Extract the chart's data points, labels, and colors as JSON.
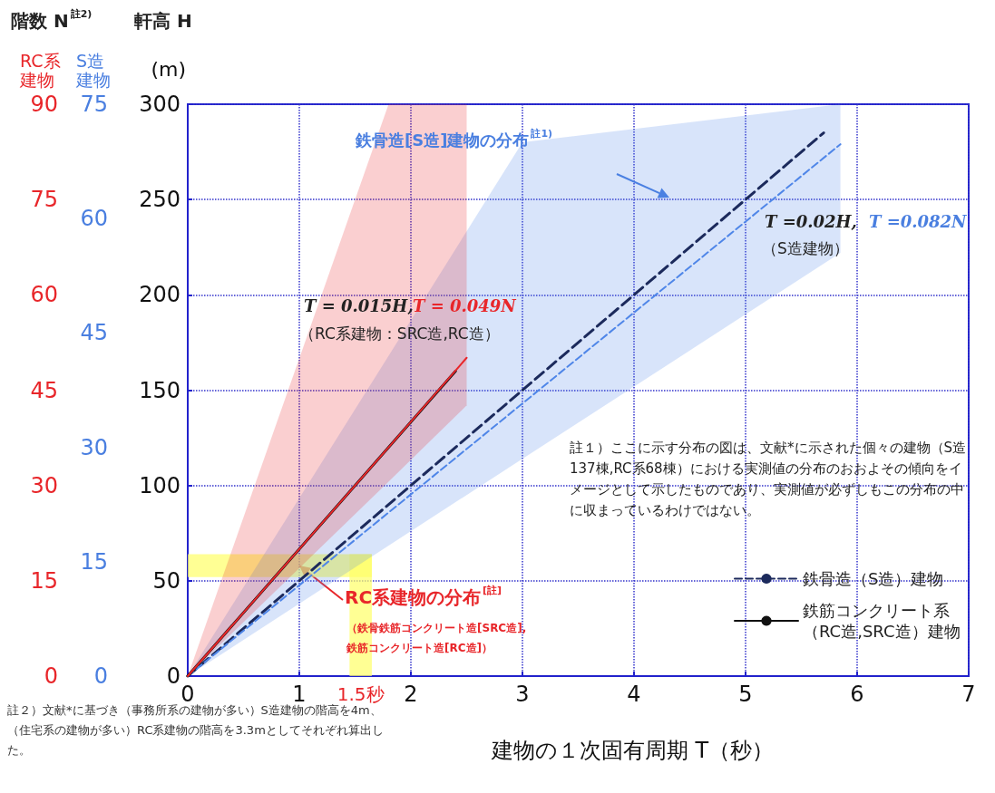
{
  "chart_data": {
    "type": "line",
    "xlabel": "建物の１次固有周期 T（秒）",
    "ylabel": "(m)",
    "y2label": "RC系建物",
    "y3label": "S造建物",
    "xlim": [
      0,
      7
    ],
    "xticks": [
      0,
      1,
      2,
      3,
      4,
      5,
      6,
      7
    ],
    "ylim": [
      0,
      300
    ],
    "yticks": [
      0,
      50,
      100,
      150,
      200,
      250,
      300
    ],
    "y2lim": [
      0,
      90
    ],
    "y2ticks": [
      0,
      15,
      30,
      45,
      60,
      75,
      90
    ],
    "y3lim": [
      0,
      75
    ],
    "y3ticks": [
      0,
      15,
      30,
      45,
      60,
      75
    ],
    "grid": true,
    "legend": "bottom right",
    "marker": "none",
    "series": [
      {
        "name": "鉄骨造（S造）建物",
        "color": "#1c2a5c",
        "line_style": "dashed",
        "x": [
          0,
          5.7
        ],
        "values": [
          0,
          285
        ]
      },
      {
        "color": "#4f86e8",
        "line_style": "dashed",
        "x": [
          0,
          3,
          5.85
        ],
        "values": [
          0,
          143,
          279
        ],
        "lower": [
          0,
          114,
          222
        ],
        "upper": [
          0,
          280,
          300
        ]
      },
      {
        "name": "鉄筋コンクリート系（RC造,SRC造）建物",
        "color": "#111111",
        "line_style": "solid",
        "x": [
          0,
          2.4
        ],
        "values": [
          0,
          160
        ]
      },
      {
        "color": "#e8262a",
        "line_style": "solid",
        "x": [
          0,
          1.8,
          2.5
        ],
        "values": [
          0,
          120,
          167
        ],
        "lower": [
          0,
          102,
          142
        ],
        "upper": [
          0,
          300,
          300
        ]
      }
    ],
    "bands": [
      {
        "axis": "y",
        "from": 52,
        "to": 64,
        "color": "#ffff66"
      },
      {
        "axis": "x",
        "from": 1.45,
        "to": 1.65,
        "label": "1.5秒",
        "color": "#ffff66"
      }
    ],
    "annotations": [
      "階数 N$^{註2)}$",
      "軒高 H",
      "鉄骨造[S造]建物の分布$^{註1)}$",
      "T =0.02H,",
      "T =0.082N",
      "（S造建物）",
      "T = 0.015H,",
      "T = 0.049N",
      "（RC系建物：SRC造,RC造）",
      {
        "text": "RC系建物の分布$^{[註]}$",
        "x": 1.0,
        "y": 58
      },
      "（鉄骨鉄筋コンクリート造[SRC造],\n鉄筋コンクリート造[RC造]）",
      "註１）ここに示す分布の図は、文献*に示された個々の建物（S造137棟,RC系68棟）における実測値の分布のおおよその傾向をイメージとして示したものであり、実測値が必ずしもこの分布の中に収まっているわけではない。",
      "註２）文献*に基づき（事務所系の建物が多い）S造建物の階高を4m、（住宅系の建物が多い）RC系建物の階高を3.3mとしてそれぞれ算出した。"
    ]
  }
}
